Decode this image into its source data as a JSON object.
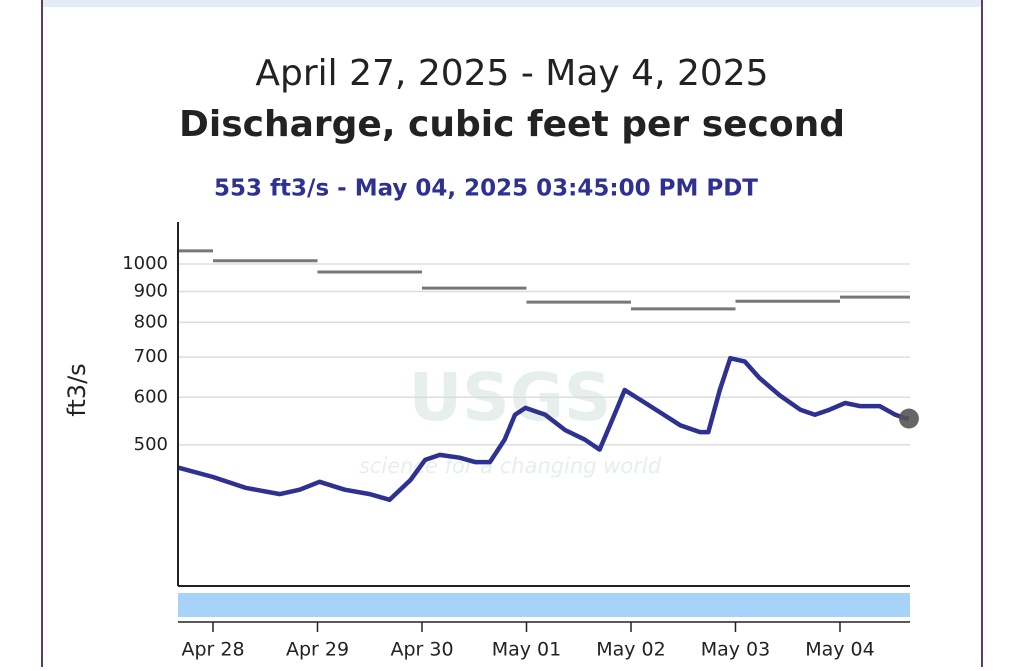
{
  "chart_data": {
    "type": "line",
    "title": "April 27, 2025 - May 4, 2025",
    "subtitle": "Discharge, cubic feet per second",
    "annotation": "553 ft3/s - May 04, 2025 03:45:00 PM PDT",
    "ylabel": "ft3/s",
    "watermark": {
      "logo": "USGS",
      "tagline": "science for a changing world"
    },
    "yscale": "log",
    "ylim": [
      291,
      1175
    ],
    "yticks": [
      500,
      600,
      700,
      800,
      900,
      1000
    ],
    "xlim": [
      27.665,
      34.67
    ],
    "xticks": [
      {
        "value": 28,
        "label": "Apr 28"
      },
      {
        "value": 29,
        "label": "Apr 29"
      },
      {
        "value": 30,
        "label": "Apr 30"
      },
      {
        "value": 31,
        "label": "May 01"
      },
      {
        "value": 32,
        "label": "May 02"
      },
      {
        "value": 33,
        "label": "May 03"
      },
      {
        "value": 34,
        "label": "May 04"
      }
    ],
    "grid": true,
    "series": [
      {
        "color": "#2e3192",
        "x": [
          27.67,
          28,
          28.31,
          28.64,
          28.83,
          29.02,
          29.26,
          29.5,
          29.69,
          29.89,
          30.03,
          30.17,
          30.36,
          30.51,
          30.65,
          30.79,
          30.89,
          30.99,
          31.18,
          31.37,
          31.56,
          31.7,
          31.82,
          31.94,
          32.09,
          32.28,
          32.47,
          32.66,
          32.74,
          32.85,
          32.95,
          33.09,
          33.23,
          33.42,
          33.62,
          33.76,
          33.9,
          34.05,
          34.19,
          34.38,
          34.53,
          34.62,
          34.66
        ],
        "values": [
          458,
          442,
          424,
          414,
          421,
          434,
          421,
          414,
          405,
          437,
          472,
          481,
          476,
          468,
          468,
          510,
          561,
          576,
          561,
          529,
          510,
          491,
          550,
          617,
          594,
          566,
          539,
          525,
          525,
          617,
          697,
          688,
          646,
          605,
          572,
          561,
          572,
          587,
          580,
          580,
          561,
          554,
          553
        ]
      },
      {
        "color": "#777777",
        "style": "step",
        "x": [
          27.665,
          28,
          29,
          30,
          31,
          32,
          33,
          34
        ],
        "values": [
          1052,
          1013,
          970,
          912,
          864,
          842,
          867,
          881
        ]
      }
    ]
  }
}
